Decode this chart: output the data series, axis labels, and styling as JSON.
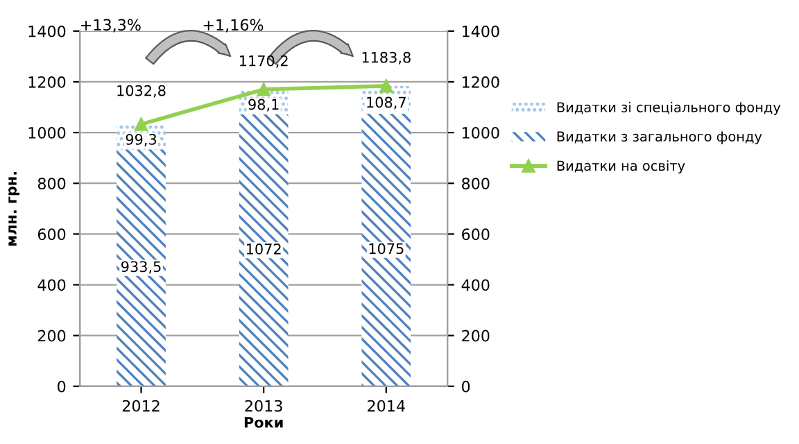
{
  "chart_data": {
    "type": "bar",
    "stacked": true,
    "categories": [
      "2012",
      "2013",
      "2014"
    ],
    "xlabel": "Роки",
    "ylabel": "млн. грн.",
    "series": [
      {
        "name": "Видатки з загального фонду",
        "color": "#4f81bd",
        "values": [
          933.5,
          1072,
          1075
        ],
        "value_labels": [
          "933,5",
          "1072",
          "1075"
        ]
      },
      {
        "name": "Видатки зі спеціального фонду",
        "color": "#9dc3e6",
        "values": [
          99.3,
          98.1,
          108.7
        ],
        "value_labels": [
          "99,3",
          "98,1",
          "108,7"
        ]
      },
      {
        "name": "Видатки на освіту",
        "type": "line",
        "axis": "y2",
        "color": "#92d050",
        "marker": "triangle",
        "values": [
          1032.8,
          1170.2,
          1183.8
        ],
        "value_labels": [
          "1032,8",
          "1170,2",
          "1183,8"
        ]
      }
    ],
    "ylim": [
      0,
      1400
    ],
    "yticks": [
      0,
      200,
      400,
      600,
      800,
      1000,
      1200,
      1400
    ],
    "y2lim": [
      0,
      1400
    ],
    "y2ticks": [
      0,
      200,
      400,
      600,
      800,
      1000,
      1200,
      1400
    ],
    "grid": "y",
    "legend": "right",
    "annotations": [
      "+13,3%",
      "+1,16%"
    ]
  }
}
